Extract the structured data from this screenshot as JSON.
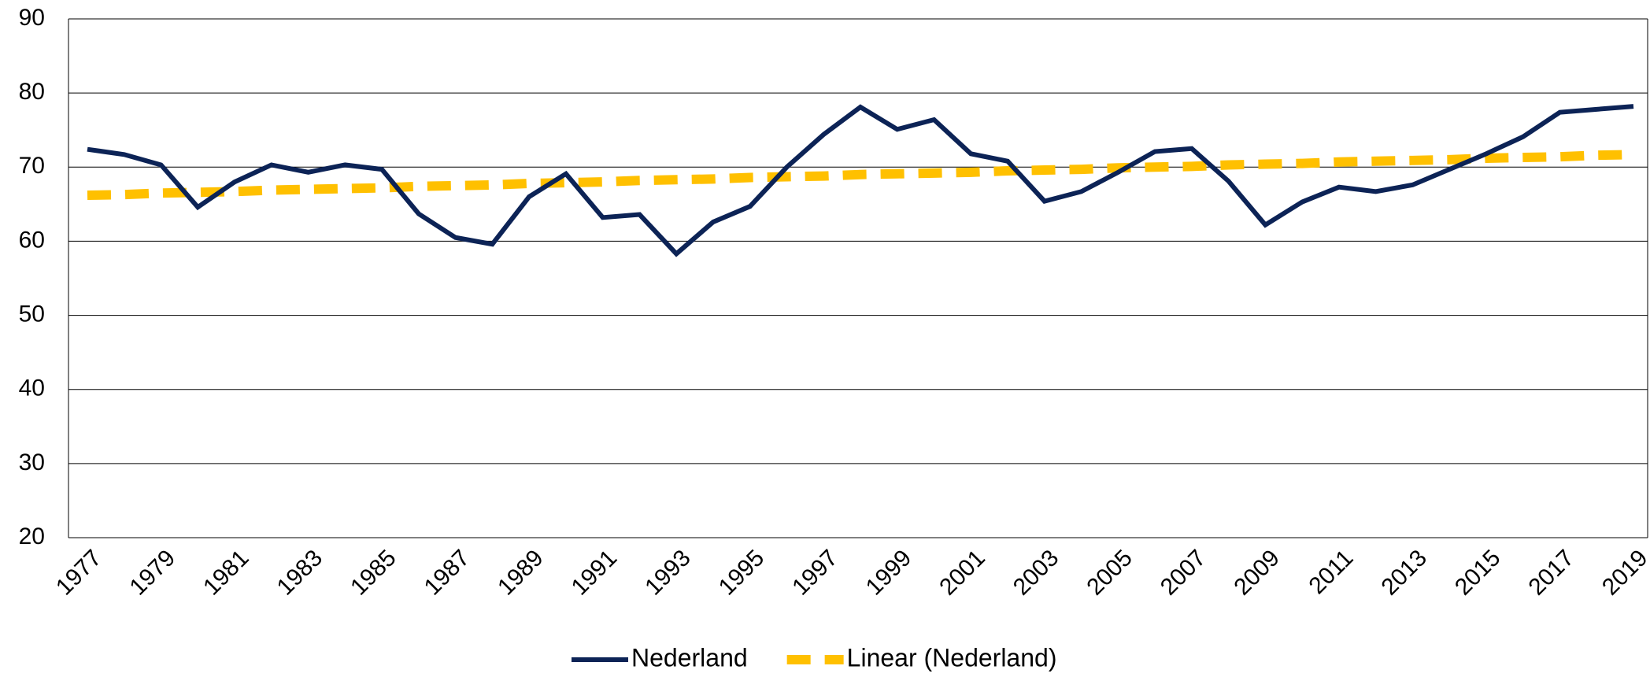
{
  "chart_data": {
    "type": "line",
    "categories": [
      "1977",
      null,
      "1979",
      null,
      "1981",
      null,
      "1983",
      null,
      "1985",
      null,
      "1987",
      null,
      "1989",
      null,
      "1991",
      null,
      "1993",
      null,
      "1995",
      null,
      "1997",
      null,
      "1999",
      null,
      "2001",
      null,
      "2003",
      null,
      "2005",
      null,
      "2007",
      null,
      "2009",
      null,
      "2011",
      null,
      "2013",
      null,
      "2015",
      null,
      "2017",
      null,
      "2019"
    ],
    "series": [
      {
        "name": "Nederland",
        "color": "#0c2356",
        "dash": false,
        "values": [
          72.4,
          71.7,
          70.3,
          64.6,
          68.0,
          70.3,
          69.3,
          70.3,
          69.7,
          63.7,
          60.5,
          59.6,
          66.0,
          69.1,
          63.2,
          63.6,
          58.3,
          62.6,
          64.7,
          70.0,
          74.4,
          78.1,
          75.1,
          76.4,
          71.8,
          70.8,
          65.4,
          66.7,
          69.3,
          72.1,
          72.5,
          68.1,
          62.2,
          65.3,
          67.3,
          66.7,
          67.6,
          69.7,
          71.8,
          74.1,
          77.4,
          77.8,
          78.2
        ]
      },
      {
        "name": "Linear (Nederland)",
        "color": "#ffc000",
        "dash": true,
        "values": [
          66.2,
          66.3,
          66.5,
          66.6,
          66.7,
          66.9,
          67.0,
          67.1,
          67.2,
          67.4,
          67.5,
          67.6,
          67.8,
          67.9,
          68.0,
          68.2,
          68.3,
          68.4,
          68.6,
          68.7,
          68.8,
          69.0,
          69.1,
          69.2,
          69.3,
          69.5,
          69.6,
          69.7,
          69.9,
          70.0,
          70.1,
          70.3,
          70.4,
          70.5,
          70.7,
          70.8,
          70.9,
          71.0,
          71.2,
          71.3,
          71.4,
          71.6,
          71.7
        ]
      }
    ],
    "ylim": [
      20,
      90
    ],
    "yticks": [
      20,
      30,
      40,
      50,
      60,
      70,
      80,
      90
    ],
    "grid": true,
    "legend": "bottom"
  }
}
